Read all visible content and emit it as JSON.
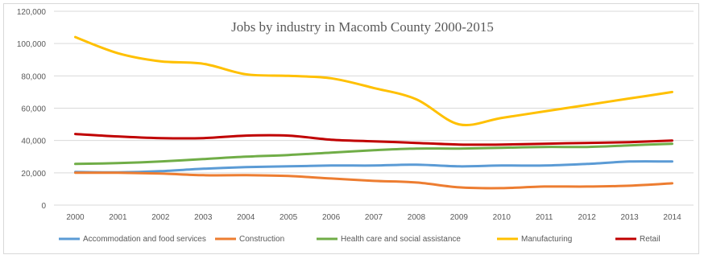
{
  "chart_data": {
    "type": "line",
    "title": "Jobs by industry in Macomb County 2000-2015",
    "xlabel": "",
    "ylabel": "",
    "x": [
      "2000",
      "2001",
      "2002",
      "2003",
      "2004",
      "2005",
      "2006",
      "2007",
      "2008",
      "2009",
      "2010",
      "2011",
      "2012",
      "2013",
      "2014"
    ],
    "ylim": [
      0,
      120000
    ],
    "yticks": [
      "0",
      "20,000",
      "40,000",
      "60,000",
      "80,000",
      "100,000",
      "120,000"
    ],
    "grid": true,
    "legend_position": "bottom",
    "series": [
      {
        "name": "Accommodation and food services",
        "color": "#5b9bd5",
        "values": [
          20500,
          20300,
          21000,
          22500,
          23500,
          24000,
          24500,
          24500,
          25000,
          24000,
          24500,
          24500,
          25500,
          27000,
          27000
        ]
      },
      {
        "name": "Construction",
        "color": "#ed7d31",
        "values": [
          20000,
          20000,
          19500,
          18500,
          18500,
          18000,
          16500,
          15000,
          14000,
          11000,
          10500,
          11500,
          11500,
          12000,
          13500
        ]
      },
      {
        "name": "Health care and social assistance",
        "color": "#70ad47",
        "values": [
          25500,
          26000,
          27000,
          28500,
          30000,
          31000,
          32500,
          34000,
          35000,
          35000,
          35500,
          36000,
          36000,
          37000,
          38000
        ]
      },
      {
        "name": "Manufacturing",
        "color": "#ffc000",
        "values": [
          104000,
          94000,
          89000,
          87500,
          81000,
          80000,
          78500,
          72500,
          65500,
          50000,
          54000,
          58000,
          62000,
          66000,
          70000
        ]
      },
      {
        "name": "Retail",
        "color": "#c00000",
        "values": [
          44000,
          42500,
          41500,
          41500,
          43000,
          43000,
          40500,
          39500,
          38500,
          37500,
          37500,
          38000,
          38500,
          39000,
          40000
        ]
      }
    ]
  }
}
